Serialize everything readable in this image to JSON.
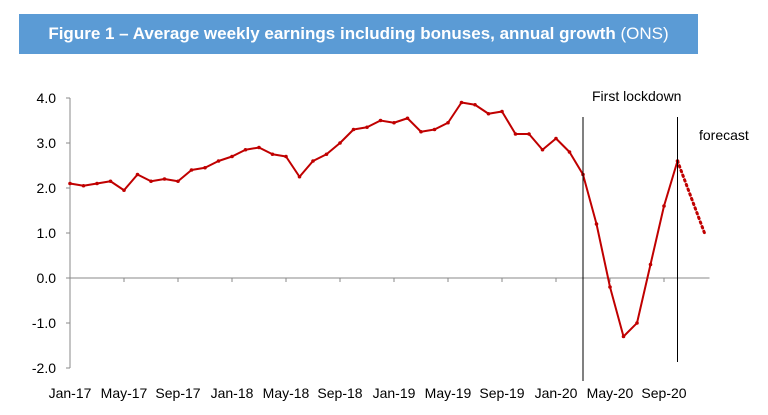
{
  "chart_data": {
    "type": "line",
    "title": "Figure 1 – Average weekly earnings including bonuses, annual growth",
    "title_source": "(ONS)",
    "xlabel": "",
    "ylabel": "",
    "ylim": [
      -2.0,
      4.0
    ],
    "yticks": [
      "4.0",
      "3.0",
      "2.0",
      "1.0",
      "0.0",
      "-1.0",
      "-2.0"
    ],
    "xticks": [
      "Jan-17",
      "May-17",
      "Sep-17",
      "Jan-18",
      "May-18",
      "Sep-18",
      "Jan-19",
      "May-19",
      "Sep-19",
      "Jan-20",
      "May-20",
      "Sep-20"
    ],
    "x": [
      "Jan-17",
      "Feb-17",
      "Mar-17",
      "Apr-17",
      "May-17",
      "Jun-17",
      "Jul-17",
      "Aug-17",
      "Sep-17",
      "Oct-17",
      "Nov-17",
      "Dec-17",
      "Jan-18",
      "Feb-18",
      "Mar-18",
      "Apr-18",
      "May-18",
      "Jun-18",
      "Jul-18",
      "Aug-18",
      "Sep-18",
      "Oct-18",
      "Nov-18",
      "Dec-18",
      "Jan-19",
      "Feb-19",
      "Mar-19",
      "Apr-19",
      "May-19",
      "Jun-19",
      "Jul-19",
      "Aug-19",
      "Sep-19",
      "Oct-19",
      "Nov-19",
      "Dec-19",
      "Jan-20",
      "Feb-20",
      "Mar-20",
      "Apr-20",
      "May-20",
      "Jun-20",
      "Jul-20",
      "Aug-20",
      "Sep-20",
      "Oct-20",
      "Nov-20",
      "Dec-20"
    ],
    "series": [
      {
        "style": "solid",
        "color": "#c00000",
        "values": [
          2.1,
          2.05,
          2.1,
          2.15,
          1.95,
          2.3,
          2.15,
          2.2,
          2.15,
          2.4,
          2.45,
          2.6,
          2.7,
          2.85,
          2.9,
          2.75,
          2.7,
          2.25,
          2.6,
          2.75,
          3.0,
          3.3,
          3.35,
          3.5,
          3.45,
          3.55,
          3.25,
          3.3,
          3.45,
          3.9,
          3.85,
          3.65,
          3.7,
          3.2,
          3.2,
          2.85,
          3.1,
          2.8,
          2.3,
          1.2,
          -0.2,
          -1.3,
          -1.0,
          0.3,
          1.6,
          2.6,
          null,
          null
        ]
      },
      {
        "style": "dotted",
        "color": "#c00000",
        "values": [
          null,
          null,
          null,
          null,
          null,
          null,
          null,
          null,
          null,
          null,
          null,
          null,
          null,
          null,
          null,
          null,
          null,
          null,
          null,
          null,
          null,
          null,
          null,
          null,
          null,
          null,
          null,
          null,
          null,
          null,
          null,
          null,
          null,
          null,
          null,
          null,
          null,
          null,
          null,
          null,
          null,
          null,
          null,
          null,
          null,
          2.6,
          1.8,
          1.0
        ]
      }
    ],
    "annotations": [
      {
        "text": "First lockdown",
        "at": "Mar-20"
      },
      {
        "text": "forecast",
        "at": "Oct-20"
      }
    ],
    "grid": false,
    "legend": "none"
  }
}
